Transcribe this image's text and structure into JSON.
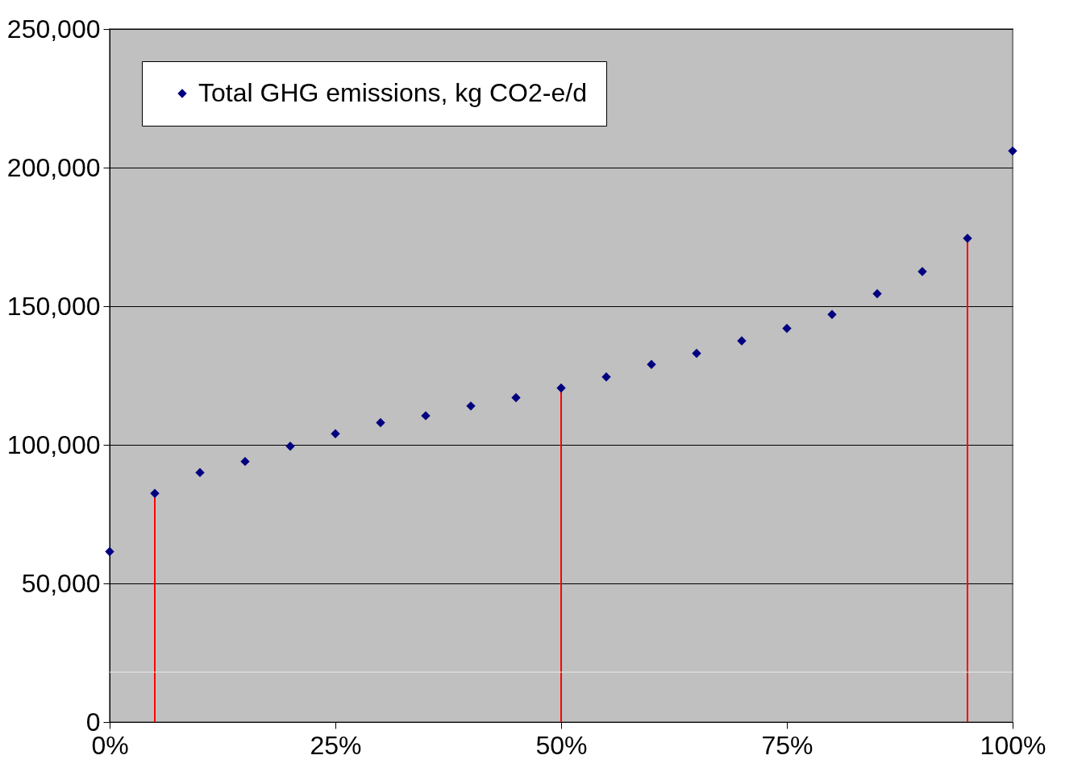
{
  "chart_data": {
    "type": "scatter",
    "x": [
      0,
      5,
      10,
      15,
      20,
      25,
      30,
      35,
      40,
      45,
      50,
      55,
      60,
      65,
      70,
      75,
      80,
      85,
      90,
      95,
      100
    ],
    "series": [
      {
        "name": "Total GHG emissions, kg CO2-e/d",
        "color": "#000080",
        "values": [
          61500,
          82500,
          90000,
          94000,
          99500,
          104000,
          108000,
          110500,
          114000,
          117000,
          120500,
          124500,
          129000,
          133000,
          137500,
          142000,
          147000,
          154500,
          162500,
          174500,
          206000
        ]
      }
    ],
    "xlim": [
      0,
      100
    ],
    "xticks": [
      {
        "value": 0,
        "label": "0%"
      },
      {
        "value": 25,
        "label": "25%"
      },
      {
        "value": 50,
        "label": "50%"
      },
      {
        "value": 75,
        "label": "75%"
      },
      {
        "value": 100,
        "label": "100%"
      }
    ],
    "ylim": [
      0,
      250000
    ],
    "yticks": [
      {
        "value": 0,
        "label": "0"
      },
      {
        "value": 50000,
        "label": "50,000"
      },
      {
        "value": 100000,
        "label": "100,000"
      },
      {
        "value": 150000,
        "label": "150,000"
      },
      {
        "value": 200000,
        "label": "200,000"
      },
      {
        "value": 250000,
        "label": "250,000"
      }
    ],
    "ref_lines": [
      {
        "axis": "x",
        "value": 5,
        "color": "#ff0000"
      },
      {
        "axis": "x",
        "value": 50,
        "color": "#ff0000"
      },
      {
        "axis": "x",
        "value": 95,
        "color": "#ff0000"
      },
      {
        "axis": "y",
        "value": 18000,
        "color": "#e8e8e8"
      }
    ],
    "grid": "y",
    "legend": "top left",
    "marker": "diamond"
  }
}
